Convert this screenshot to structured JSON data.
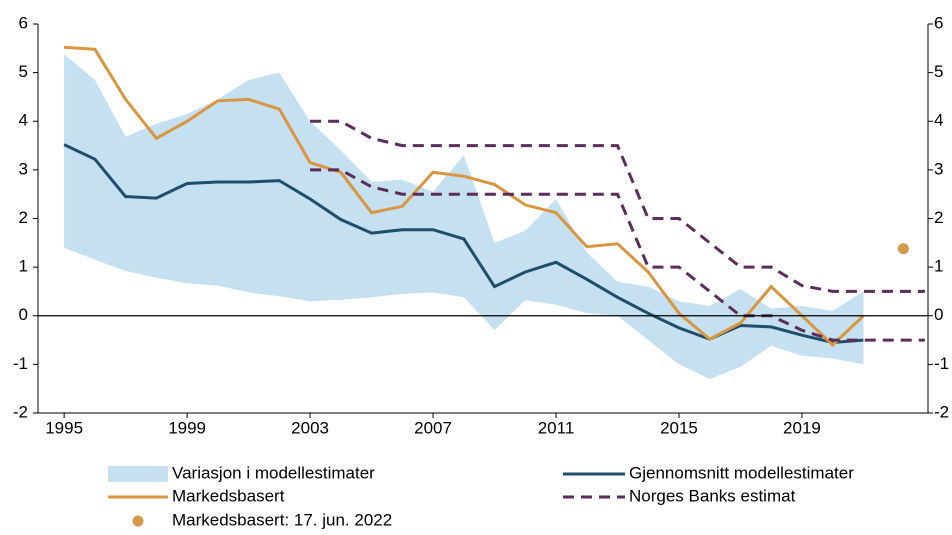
{
  "chart_data": {
    "type": "line",
    "x": [
      1995,
      1996,
      1997,
      1998,
      1999,
      2000,
      2001,
      2002,
      2003,
      2004,
      2005,
      2006,
      2007,
      2008,
      2009,
      2010,
      2011,
      2012,
      2013,
      2014,
      2015,
      2016,
      2017,
      2018,
      2019,
      2020,
      2021
    ],
    "xlim": [
      1994.15,
      2023.1
    ],
    "xticks": [
      1995,
      1999,
      2003,
      2007,
      2011,
      2015,
      2019
    ],
    "ylim": [
      -2,
      6
    ],
    "yticks": [
      -2,
      -1,
      0,
      1,
      2,
      3,
      4,
      5,
      6
    ],
    "y2lim": [
      -2,
      6
    ],
    "y2ticks": [
      -2,
      -1,
      0,
      1,
      2,
      3,
      4,
      5,
      6
    ],
    "series": [
      {
        "name": "Variasjon i modellestimater",
        "type": "band",
        "color": "#c5e0f0",
        "upper": [
          5.38,
          4.85,
          3.68,
          3.95,
          4.15,
          4.45,
          4.85,
          5.0,
          4.0,
          3.4,
          2.75,
          2.8,
          2.55,
          3.3,
          1.5,
          1.75,
          2.4,
          1.3,
          0.7,
          0.6,
          0.3,
          0.2,
          0.55,
          0.15,
          0.2,
          0.1,
          0.5
        ],
        "lower": [
          1.4,
          1.15,
          0.92,
          0.78,
          0.67,
          0.62,
          0.48,
          0.4,
          0.3,
          0.33,
          0.38,
          0.45,
          0.48,
          0.38,
          -0.3,
          0.32,
          0.23,
          0.05,
          0.0,
          -0.5,
          -1.0,
          -1.3,
          -1.05,
          -0.62,
          -0.82,
          -0.88,
          -1.0
        ]
      },
      {
        "name": "Gjennomsnitt modellestimater",
        "type": "line",
        "color": "#1f4e6b",
        "values": [
          3.52,
          3.22,
          2.45,
          2.42,
          2.72,
          2.75,
          2.75,
          2.78,
          2.4,
          1.98,
          1.7,
          1.77,
          1.77,
          1.58,
          0.6,
          0.9,
          1.1,
          0.75,
          0.38,
          0.05,
          -0.25,
          -0.48,
          -0.2,
          -0.23,
          -0.4,
          -0.55,
          -0.5
        ]
      },
      {
        "name": "Markedsbasert",
        "type": "line",
        "color": "#d9953f",
        "values": [
          5.52,
          5.48,
          4.45,
          3.65,
          4.0,
          4.42,
          4.45,
          4.25,
          3.15,
          2.95,
          2.12,
          2.25,
          2.95,
          2.87,
          2.7,
          2.28,
          2.12,
          1.42,
          1.48,
          0.9,
          0.05,
          -0.48,
          -0.15,
          0.6,
          0.0,
          -0.6,
          0.0
        ]
      },
      {
        "name": "Norges Banks estimat",
        "type": "dashed-band",
        "color": "#5a2d5a",
        "x": [
          2003,
          2004,
          2005,
          2006,
          2007,
          2008,
          2009,
          2010,
          2011,
          2012,
          2013,
          2014,
          2015,
          2016,
          2017,
          2018,
          2019,
          2020,
          2021,
          2022,
          2023
        ],
        "upper": [
          4.0,
          4.0,
          3.65,
          3.5,
          3.5,
          3.5,
          3.5,
          3.5,
          3.5,
          3.5,
          3.5,
          2.0,
          2.0,
          1.5,
          1.0,
          1.0,
          0.62,
          0.5,
          0.5,
          0.5,
          0.5
        ],
        "lower": [
          3.0,
          3.0,
          2.65,
          2.5,
          2.5,
          2.5,
          2.5,
          2.5,
          2.5,
          2.5,
          2.5,
          1.0,
          1.0,
          0.5,
          0.0,
          0.0,
          -0.3,
          -0.5,
          -0.5,
          -0.5,
          -0.5
        ]
      },
      {
        "name": "Markedsbasert: 17. jun. 2022",
        "type": "point",
        "color": "#d49a4a",
        "x": [
          2022.3
        ],
        "values": [
          1.38
        ]
      }
    ]
  }
}
